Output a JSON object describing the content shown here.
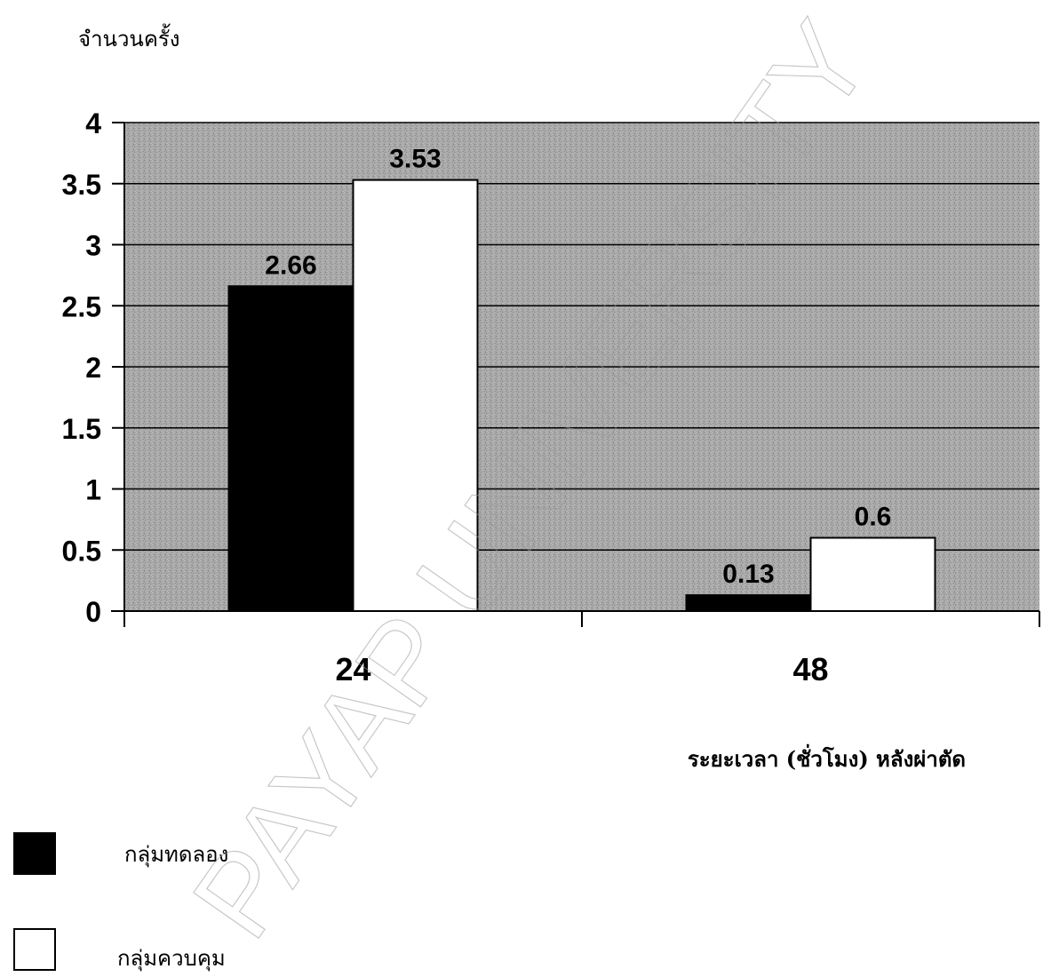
{
  "watermark": "PAYAP UNIVERSITY",
  "colors": {
    "series_experimental": "#000000",
    "series_control": "#ffffff",
    "plot_background": "#a9a9a9",
    "gridline": "#000000"
  },
  "chart_data": {
    "type": "bar",
    "title": "",
    "ylabel": "จำนวนครั้ง",
    "xlabel": "ระยะเวลา (ชั่วโมง) หลังผ่าตัด",
    "categories": [
      "24",
      "48"
    ],
    "series": [
      {
        "name": "กลุ่มทดลอง",
        "values": [
          2.66,
          0.13
        ],
        "labels": [
          "2.66",
          "0.13"
        ]
      },
      {
        "name": "กลุ่มควบคุม",
        "values": [
          3.53,
          0.6
        ],
        "labels": [
          "3.53",
          "0.6"
        ]
      }
    ],
    "ylim": [
      0,
      4
    ],
    "ytick_labels": [
      "0",
      "0.5",
      "1",
      "1.5",
      "2",
      "2.5",
      "3",
      "3.5",
      "4"
    ],
    "grid": true,
    "legend_position": "bottom-left"
  }
}
